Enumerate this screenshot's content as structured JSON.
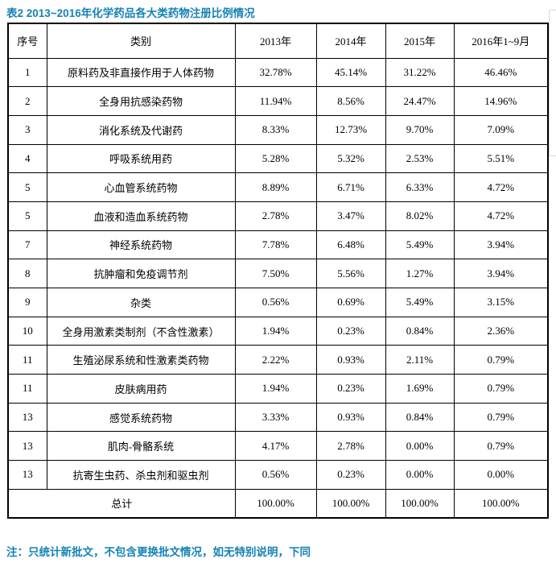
{
  "title": "表2 2013~2016年化学药品各大类药物注册比例情况",
  "note": "注：只统计新批文，不包含更换批文情况，如无特别说明，下同",
  "colors": {
    "heading_blue": "#1482b4",
    "table_border": "#000000",
    "page_edge_gray": "#d8d8d8",
    "background": "#ffffff"
  },
  "table": {
    "headers": [
      "序号",
      "类别",
      "2013年",
      "2014年",
      "2015年",
      "2016年1~9月"
    ],
    "rows": [
      {
        "no": "1",
        "category": "原料药及非直接作用于人体药物",
        "v2013": "32.78%",
        "v2014": "45.14%",
        "v2015": "31.22%",
        "v2016": "46.46%"
      },
      {
        "no": "2",
        "category": "全身用抗感染药物",
        "v2013": "11.94%",
        "v2014": "8.56%",
        "v2015": "24.47%",
        "v2016": "14.96%"
      },
      {
        "no": "3",
        "category": "消化系统及代谢药",
        "v2013": "8.33%",
        "v2014": "12.73%",
        "v2015": "9.70%",
        "v2016": "7.09%"
      },
      {
        "no": "4",
        "category": "呼吸系统用药",
        "v2013": "5.28%",
        "v2014": "5.32%",
        "v2015": "2.53%",
        "v2016": "5.51%"
      },
      {
        "no": "5",
        "category": "心血管系统药物",
        "v2013": "8.89%",
        "v2014": "6.71%",
        "v2015": "6.33%",
        "v2016": "4.72%"
      },
      {
        "no": "5",
        "category": "血液和造血系统药物",
        "v2013": "2.78%",
        "v2014": "3.47%",
        "v2015": "8.02%",
        "v2016": "4.72%"
      },
      {
        "no": "7",
        "category": "神经系统药物",
        "v2013": "7.78%",
        "v2014": "6.48%",
        "v2015": "5.49%",
        "v2016": "3.94%"
      },
      {
        "no": "8",
        "category": "抗肿瘤和免疫调节剂",
        "v2013": "7.50%",
        "v2014": "5.56%",
        "v2015": "1.27%",
        "v2016": "3.94%"
      },
      {
        "no": "9",
        "category": "杂类",
        "v2013": "0.56%",
        "v2014": "0.69%",
        "v2015": "5.49%",
        "v2016": "3.15%"
      },
      {
        "no": "10",
        "category": "全身用激素类制剂（不含性激素）",
        "v2013": "1.94%",
        "v2014": "0.23%",
        "v2015": "0.84%",
        "v2016": "2.36%"
      },
      {
        "no": "11",
        "category": "生殖泌尿系统和性激素类药物",
        "v2013": "2.22%",
        "v2014": "0.93%",
        "v2015": "2.11%",
        "v2016": "0.79%"
      },
      {
        "no": "11",
        "category": "皮肤病用药",
        "v2013": "1.94%",
        "v2014": "0.23%",
        "v2015": "1.69%",
        "v2016": "0.79%"
      },
      {
        "no": "13",
        "category": "感觉系统药物",
        "v2013": "3.33%",
        "v2014": "0.93%",
        "v2015": "0.84%",
        "v2016": "0.79%"
      },
      {
        "no": "13",
        "category": "肌肉-骨骼系统",
        "v2013": "4.17%",
        "v2014": "2.78%",
        "v2015": "0.00%",
        "v2016": "0.79%"
      },
      {
        "no": "13",
        "category": "抗寄生虫药、杀虫剂和驱虫剂",
        "v2013": "0.56%",
        "v2014": "0.23%",
        "v2015": "0.00%",
        "v2016": "0.00%"
      }
    ],
    "total": {
      "label": "总计",
      "v2013": "100.00%",
      "v2014": "100.00%",
      "v2015": "100.00%",
      "v2016": "100.00%"
    }
  }
}
